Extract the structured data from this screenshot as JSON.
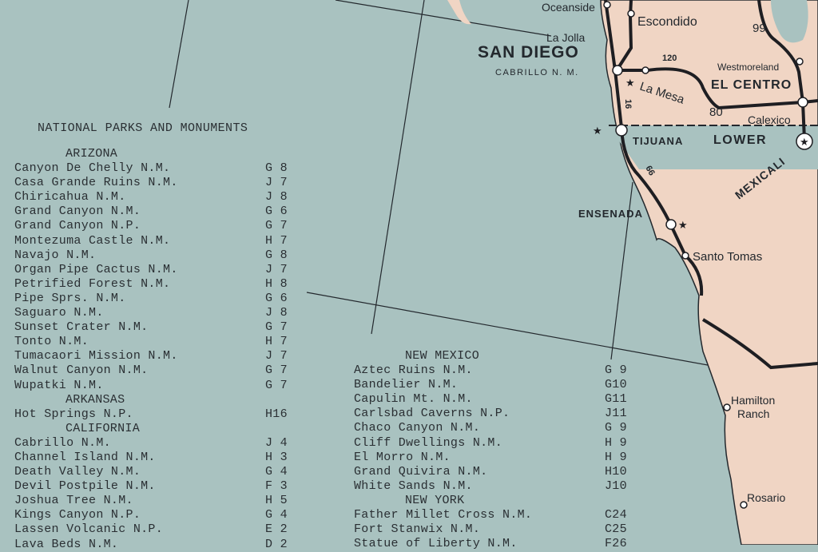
{
  "colors": {
    "water": "#a9c2c0",
    "land": "#f0d5c4",
    "road": "#1e1e22",
    "ink": "#2a2f33"
  },
  "title": "NATIONAL PARKS AND MONUMENTS",
  "left_sections": [
    {
      "state": "ARIZONA",
      "items": [
        {
          "name": "Canyon De Chelly N.M.",
          "code": "G 8"
        },
        {
          "name": "Casa Grande Ruins N.M.",
          "code": "J 7"
        },
        {
          "name": "Chiricahua N.M.",
          "code": "J 8"
        },
        {
          "name": "Grand Canyon N.M.",
          "code": "G 6"
        },
        {
          "name": "Grand Canyon N.P.",
          "code": "G 7"
        },
        {
          "name": "Montezuma Castle N.M.",
          "code": "H 7"
        },
        {
          "name": "Navajo N.M.",
          "code": "G 8"
        },
        {
          "name": "Organ Pipe Cactus N.M.",
          "code": "J 7"
        },
        {
          "name": "Petrified Forest N.M.",
          "code": "H 8"
        },
        {
          "name": "Pipe Sprs. N.M.",
          "code": "G 6"
        },
        {
          "name": "Saguaro N.M.",
          "code": "J 8"
        },
        {
          "name": "Sunset Crater N.M.",
          "code": "G 7"
        },
        {
          "name": "Tonto N.M.",
          "code": "H 7"
        },
        {
          "name": "Tumacaori Mission N.M.",
          "code": "J 7"
        },
        {
          "name": "Walnut Canyon N.M.",
          "code": "G 7"
        },
        {
          "name": "Wupatki N.M.",
          "code": "G 7"
        }
      ]
    },
    {
      "state": "ARKANSAS",
      "items": [
        {
          "name": "Hot Springs N.P.",
          "code": "H16"
        }
      ]
    },
    {
      "state": "CALIFORNIA",
      "items": [
        {
          "name": "Cabrillo N.M.",
          "code": "J 4"
        },
        {
          "name": "Channel Island N.M.",
          "code": "H 3"
        },
        {
          "name": "Death Valley N.M.",
          "code": "G 4"
        },
        {
          "name": "Devil Postpile N.M.",
          "code": "F 3"
        },
        {
          "name": "Joshua Tree N.M.",
          "code": "H 5"
        },
        {
          "name": "Kings Canyon N.P.",
          "code": "G 4"
        },
        {
          "name": "Lassen Volcanic N.P.",
          "code": "E 2"
        },
        {
          "name": "Lava Beds N.M.",
          "code": "D 2"
        }
      ]
    }
  ],
  "right_sections": [
    {
      "state": "NEW MEXICO",
      "items": [
        {
          "name": "Aztec Ruins N.M.",
          "code": "G 9"
        },
        {
          "name": "Bandelier N.M.",
          "code": "G10"
        },
        {
          "name": "Capulin Mt. N.M.",
          "code": "G11"
        },
        {
          "name": "Carlsbad Caverns N.P.",
          "code": "J11"
        },
        {
          "name": "Chaco Canyon N.M.",
          "code": "G 9"
        },
        {
          "name": "Cliff Dwellings N.M.",
          "code": "H 9"
        },
        {
          "name": "El Morro N.M.",
          "code": "H 9"
        },
        {
          "name": "Grand Quivira N.M.",
          "code": "H10"
        },
        {
          "name": "White Sands N.M.",
          "code": "J10"
        }
      ]
    },
    {
      "state": "NEW YORK",
      "items": [
        {
          "name": "Father Millet Cross N.M.",
          "code": "C24"
        },
        {
          "name": "Fort Stanwix N.M.",
          "code": "C25"
        },
        {
          "name": "Statue of Liberty N.M.",
          "code": "F26"
        }
      ]
    }
  ],
  "map_labels": {
    "oceanside": "Oceanside",
    "escondido": "Escondido",
    "la_jolla": "La Jolla",
    "san_diego": "SAN DIEGO",
    "cabrillo": "CABRILLO N. M.",
    "la_mesa": "La Mesa",
    "westmoreland": "Westmoreland",
    "el_centro": "EL CENTRO",
    "calexico": "Calexico",
    "tijuana": "TIJUANA",
    "lower": "LOWER",
    "mexicali": "MEXICALI",
    "ensenada": "ENSENADA",
    "santo_tomas": "Santo Tomas",
    "hamilton_ranch_1": "Hamilton",
    "hamilton_ranch_2": "Ranch",
    "rosario": "Rosario",
    "route_99": "99",
    "route_80": "80",
    "route_120": "120",
    "route_16": "16",
    "route_66": "66"
  }
}
